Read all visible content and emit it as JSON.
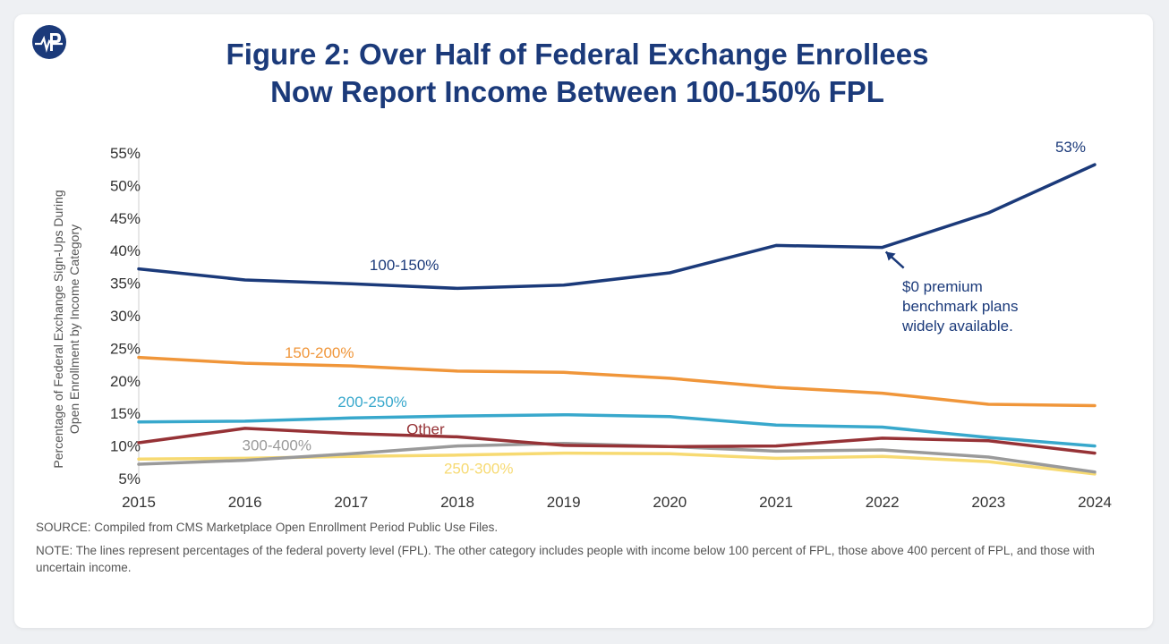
{
  "title_line1": "Figure 2: Over Half of Federal Exchange Enrollees",
  "title_line2": "Now Report Income Between 100-150% FPL",
  "source": "SOURCE: Compiled from CMS Marketplace Open Enrollment Period Public Use Files.",
  "note": "NOTE: The lines represent percentages of the federal poverty level (FPL). The other category includes people with income below 100 percent of FPL, those above 400 percent of FPL, and those with uncertain income.",
  "colors": {
    "brand": "#1b3a7a",
    "text_muted": "#555555"
  },
  "chart_data": {
    "type": "line",
    "ylabel_line1": "Percentage of Federal Exchange Sign-Ups During",
    "ylabel_line2": "Open Enrollment by Income Category",
    "x": [
      2015,
      2016,
      2017,
      2018,
      2019,
      2020,
      2021,
      2022,
      2023,
      2024
    ],
    "ylim": [
      5,
      55
    ],
    "yticks": [
      5,
      10,
      15,
      20,
      25,
      30,
      35,
      40,
      45,
      50,
      55
    ],
    "ytick_labels": [
      "5%",
      "10%",
      "15%",
      "20%",
      "25%",
      "30%",
      "35%",
      "40%",
      "45%",
      "50%",
      "55%"
    ],
    "grid": false,
    "series": [
      {
        "name": "100-150%",
        "color": "#1b3a7a",
        "values": [
          37.2,
          35.5,
          34.9,
          34.2,
          34.7,
          36.6,
          40.8,
          40.5,
          45.8,
          53.2
        ]
      },
      {
        "name": "150-200%",
        "color": "#f0963a",
        "values": [
          23.6,
          22.7,
          22.3,
          21.5,
          21.3,
          20.4,
          19.0,
          18.1,
          16.4,
          16.2
        ]
      },
      {
        "name": "200-250%",
        "color": "#38a8cc",
        "values": [
          13.7,
          13.8,
          14.3,
          14.6,
          14.8,
          14.5,
          13.2,
          12.9,
          11.3,
          10.0
        ]
      },
      {
        "name": "Other",
        "color": "#963236",
        "values": [
          10.5,
          12.7,
          11.9,
          11.4,
          10.1,
          9.9,
          10.0,
          11.2,
          10.8,
          8.9
        ]
      },
      {
        "name": "300-400%",
        "color": "#9a9a9a",
        "values": [
          7.2,
          7.8,
          8.8,
          10.0,
          10.4,
          9.9,
          9.2,
          9.4,
          8.3,
          6.0
        ]
      },
      {
        "name": "250-300%",
        "color": "#f7da72",
        "values": [
          8.0,
          8.1,
          8.4,
          8.6,
          8.9,
          8.8,
          8.1,
          8.4,
          7.6,
          5.7
        ]
      }
    ],
    "annotations": {
      "end_label": "53%",
      "callout_lines": [
        "$0 premium",
        "benchmark plans",
        "widely available."
      ],
      "callout_year": 2022
    }
  }
}
